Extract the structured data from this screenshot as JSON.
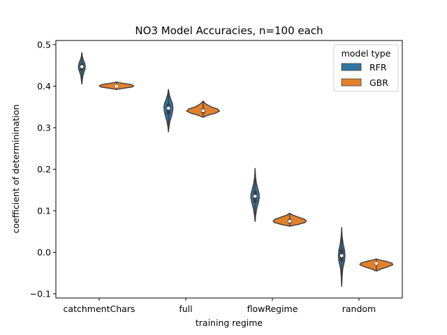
{
  "chart_data": {
    "type": "violin",
    "title": "NO3 Model Accuracies, n=100 each",
    "xlabel": "training regime",
    "ylabel": "coefficient of determinination",
    "categories": [
      "catchmentChars",
      "full",
      "flowRegime",
      "random"
    ],
    "ylim": [
      -0.11,
      0.51
    ],
    "yticks": [
      -0.1,
      0.0,
      0.1,
      0.2,
      0.3,
      0.4,
      0.5
    ],
    "ytick_labels": [
      "−0.1",
      "0.0",
      "0.1",
      "0.2",
      "0.3",
      "0.4",
      "0.5"
    ],
    "grid": false,
    "legend": {
      "title": "model type",
      "placement": "top-right",
      "entries": [
        "RFR",
        "GBR"
      ]
    },
    "series": [
      {
        "name": "RFR",
        "color": "#3274a1",
        "violins": [
          {
            "min": 0.405,
            "max": 0.481,
            "q1": 0.437,
            "median": 0.447,
            "q3": 0.455,
            "profile": [
              [
                0.405,
                0.0
              ],
              [
                0.415,
                0.012
              ],
              [
                0.425,
                0.025
              ],
              [
                0.435,
                0.055
              ],
              [
                0.44,
                0.075
              ],
              [
                0.447,
                0.085
              ],
              [
                0.455,
                0.07
              ],
              [
                0.462,
                0.04
              ],
              [
                0.47,
                0.015
              ],
              [
                0.481,
                0.0
              ]
            ]
          },
          {
            "min": 0.29,
            "max": 0.392,
            "q1": 0.332,
            "median": 0.347,
            "q3": 0.358,
            "profile": [
              [
                0.29,
                0.0
              ],
              [
                0.3,
                0.01
              ],
              [
                0.315,
                0.035
              ],
              [
                0.33,
                0.08
              ],
              [
                0.34,
                0.1
              ],
              [
                0.35,
                0.11
              ],
              [
                0.36,
                0.09
              ],
              [
                0.37,
                0.05
              ],
              [
                0.38,
                0.02
              ],
              [
                0.392,
                0.0
              ]
            ]
          },
          {
            "min": 0.074,
            "max": 0.202,
            "q1": 0.12,
            "median": 0.135,
            "q3": 0.148,
            "profile": [
              [
                0.074,
                0.0
              ],
              [
                0.09,
                0.015
              ],
              [
                0.105,
                0.04
              ],
              [
                0.12,
                0.08
              ],
              [
                0.13,
                0.1
              ],
              [
                0.14,
                0.1
              ],
              [
                0.15,
                0.075
              ],
              [
                0.165,
                0.035
              ],
              [
                0.18,
                0.012
              ],
              [
                0.202,
                0.0
              ]
            ]
          },
          {
            "min": -0.082,
            "max": 0.06,
            "q1": -0.022,
            "median": -0.008,
            "q3": 0.008,
            "profile": [
              [
                -0.082,
                0.0
              ],
              [
                -0.06,
                0.01
              ],
              [
                -0.04,
                0.025
              ],
              [
                -0.02,
                0.07
              ],
              [
                -0.008,
                0.08
              ],
              [
                0.005,
                0.07
              ],
              [
                0.02,
                0.035
              ],
              [
                0.04,
                0.01
              ],
              [
                0.06,
                0.0
              ]
            ]
          }
        ]
      },
      {
        "name": "GBR",
        "color": "#e1812c",
        "violins": [
          {
            "min": 0.392,
            "max": 0.41,
            "q1": 0.398,
            "median": 0.4,
            "q3": 0.403,
            "profile": [
              [
                0.392,
                0.0
              ],
              [
                0.395,
                0.18
              ],
              [
                0.398,
                0.38
              ],
              [
                0.401,
                0.42
              ],
              [
                0.404,
                0.35
              ],
              [
                0.407,
                0.15
              ],
              [
                0.41,
                0.0
              ]
            ]
          },
          {
            "min": 0.325,
            "max": 0.364,
            "q1": 0.335,
            "median": 0.341,
            "q3": 0.346,
            "profile": [
              [
                0.325,
                0.0
              ],
              [
                0.33,
                0.12
              ],
              [
                0.335,
                0.3
              ],
              [
                0.34,
                0.4
              ],
              [
                0.345,
                0.35
              ],
              [
                0.35,
                0.2
              ],
              [
                0.357,
                0.07
              ],
              [
                0.364,
                0.0
              ]
            ]
          },
          {
            "min": 0.063,
            "max": 0.094,
            "q1": 0.07,
            "median": 0.075,
            "q3": 0.08,
            "profile": [
              [
                0.063,
                0.0
              ],
              [
                0.067,
                0.2
              ],
              [
                0.072,
                0.38
              ],
              [
                0.076,
                0.4
              ],
              [
                0.08,
                0.35
              ],
              [
                0.085,
                0.2
              ],
              [
                0.09,
                0.07
              ],
              [
                0.094,
                0.0
              ]
            ]
          },
          {
            "min": -0.045,
            "max": -0.016,
            "q1": -0.031,
            "median": -0.027,
            "q3": -0.024,
            "profile": [
              [
                -0.045,
                0.0
              ],
              [
                -0.04,
                0.12
              ],
              [
                -0.035,
                0.28
              ],
              [
                -0.03,
                0.4
              ],
              [
                -0.026,
                0.38
              ],
              [
                -0.022,
                0.25
              ],
              [
                -0.018,
                0.07
              ],
              [
                -0.016,
                0.0
              ]
            ]
          }
        ]
      }
    ]
  }
}
